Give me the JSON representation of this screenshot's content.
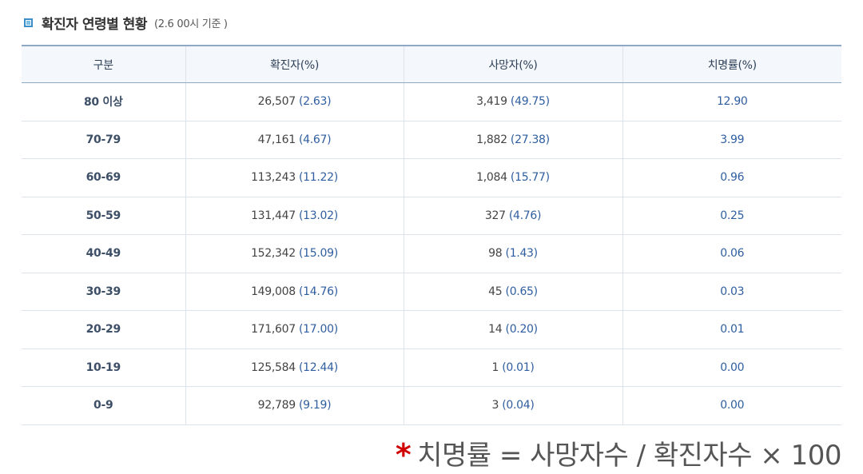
{
  "header": {
    "title": "확진자 연령별 현황",
    "note": "(2.6 00시 기준 )"
  },
  "table": {
    "columns": [
      "구분",
      "확진자(%)",
      "사망자(%)",
      "치명률(%)"
    ],
    "rows": [
      {
        "age": "80 이상",
        "confirmed": "26,507",
        "confirmed_pct": "(2.63)",
        "deaths": "3,419",
        "deaths_pct": "(49.75)",
        "fatality": "12.90"
      },
      {
        "age": "70-79",
        "confirmed": "47,161",
        "confirmed_pct": "(4.67)",
        "deaths": "1,882",
        "deaths_pct": "(27.38)",
        "fatality": "3.99"
      },
      {
        "age": "60-69",
        "confirmed": "113,243",
        "confirmed_pct": "(11.22)",
        "deaths": "1,084",
        "deaths_pct": "(15.77)",
        "fatality": "0.96"
      },
      {
        "age": "50-59",
        "confirmed": "131,447",
        "confirmed_pct": "(13.02)",
        "deaths": "327",
        "deaths_pct": "(4.76)",
        "fatality": "0.25"
      },
      {
        "age": "40-49",
        "confirmed": "152,342",
        "confirmed_pct": "(15.09)",
        "deaths": "98",
        "deaths_pct": "(1.43)",
        "fatality": "0.06"
      },
      {
        "age": "30-39",
        "confirmed": "149,008",
        "confirmed_pct": "(14.76)",
        "deaths": "45",
        "deaths_pct": "(0.65)",
        "fatality": "0.03"
      },
      {
        "age": "20-29",
        "confirmed": "171,607",
        "confirmed_pct": "(17.00)",
        "deaths": "14",
        "deaths_pct": "(0.20)",
        "fatality": "0.01"
      },
      {
        "age": "10-19",
        "confirmed": "125,584",
        "confirmed_pct": "(12.44)",
        "deaths": "1",
        "deaths_pct": "(0.01)",
        "fatality": "0.00"
      },
      {
        "age": "0-9",
        "confirmed": "92,789",
        "confirmed_pct": "(9.19)",
        "deaths": "3",
        "deaths_pct": "(0.04)",
        "fatality": "0.00"
      }
    ]
  },
  "footnote": {
    "mark": "*",
    "text": "치명률 = 사망자수 / 확진자수 × 100"
  },
  "colors": {
    "accent": "#3a8fc8",
    "header_border": "#8fa8c6",
    "value_blue": "#2f5ea0",
    "footnote_mark": "#d10000"
  },
  "icons": {
    "title_bullet": "square-bullet-icon"
  }
}
